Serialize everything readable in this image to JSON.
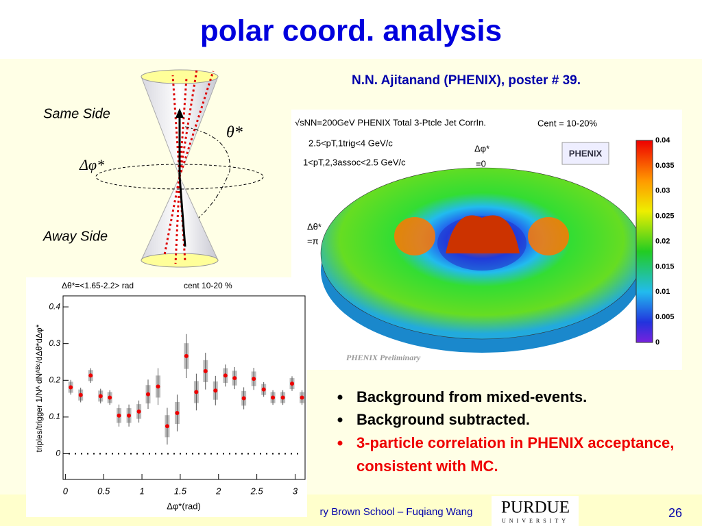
{
  "header": {
    "title": "polar coord. analysis",
    "credit": "N.N. Ajitanand (PHENIX), poster # 39."
  },
  "diagram": {
    "same_side": "Same Side",
    "away_side": "Away Side",
    "theta": "θ*",
    "phi": "Δφ*"
  },
  "surface_plot": {
    "energy": "√sNN=200GeV PHENIX Total 3-Ptcle Jet CorrIn.",
    "centrality": "Cent = 10-20%",
    "trigger": "2.5<pT,1trig<4 GeV/c",
    "assoc": "1<pT,2,3assoc<2.5 GeV/c",
    "phi_label": "Δφ*",
    "phi_value": "=0",
    "theta_label": "Δθ*",
    "theta_value": "=π",
    "logo": "PHENIX",
    "preliminary": "PHENIX Preliminary",
    "colorbar_ticks": [
      "0.04",
      "0.035",
      "0.03",
      "0.025",
      "0.02",
      "0.015",
      "0.01",
      "0.005",
      "0"
    ]
  },
  "bullets": [
    "Background from mixed-events.",
    "Background subtracted.",
    "3-particle correlation in PHENIX acceptance, consistent with MC."
  ],
  "footer": {
    "text": "ry Brown School – Fuqiang Wang",
    "page": "26",
    "logo": "PURDUE",
    "logo_sub": "UNIVERSITY"
  },
  "chart_data": {
    "type": "scatter",
    "annotations": [
      "Δθ*=<1.65-2.2> rad",
      "cent 10-20 %"
    ],
    "x_label": "Δφ*(rad)",
    "y_label": "triples/trigger 1/Nᴬ dNᴬᴮᶜ/dΔθ*dΔφ*",
    "x": [
      0.07,
      0.2,
      0.33,
      0.46,
      0.58,
      0.7,
      0.83,
      0.96,
      1.08,
      1.21,
      1.33,
      1.46,
      1.58,
      1.71,
      1.83,
      1.96,
      2.09,
      2.21,
      2.33,
      2.46,
      2.59,
      2.71,
      2.84,
      2.96,
      3.09
    ],
    "values": [
      0.181,
      0.16,
      0.213,
      0.157,
      0.153,
      0.104,
      0.104,
      0.115,
      0.162,
      0.183,
      0.075,
      0.111,
      0.266,
      0.168,
      0.225,
      0.172,
      0.213,
      0.206,
      0.151,
      0.204,
      0.175,
      0.153,
      0.153,
      0.191,
      0.153
    ],
    "errors": [
      0.02,
      0.02,
      0.02,
      0.02,
      0.02,
      0.03,
      0.03,
      0.03,
      0.04,
      0.05,
      0.05,
      0.05,
      0.06,
      0.05,
      0.05,
      0.04,
      0.03,
      0.03,
      0.03,
      0.03,
      0.02,
      0.02,
      0.02,
      0.02,
      0.02
    ],
    "sys_errors": [
      0.015,
      0.015,
      0.015,
      0.015,
      0.015,
      0.02,
      0.02,
      0.02,
      0.025,
      0.03,
      0.03,
      0.03,
      0.035,
      0.03,
      0.03,
      0.025,
      0.02,
      0.02,
      0.02,
      0.02,
      0.015,
      0.015,
      0.015,
      0.015,
      0.015
    ],
    "color": "#ee0000",
    "xlim": [
      -0.03,
      3.13
    ],
    "ylim": [
      -0.07,
      0.43
    ],
    "xticks": [
      0,
      0.5,
      1,
      1.5,
      2,
      2.5,
      3
    ],
    "yticks": [
      0,
      0.1,
      0.2,
      0.3,
      0.4
    ]
  }
}
